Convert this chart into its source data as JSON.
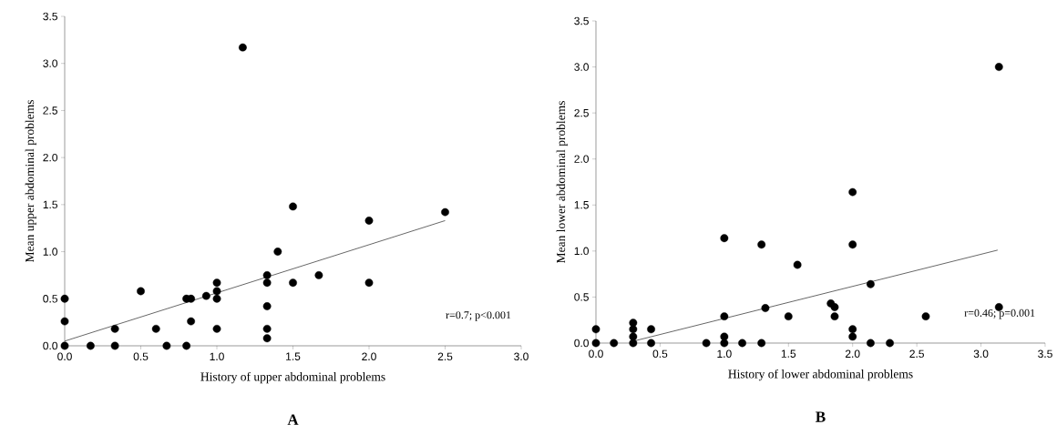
{
  "chart_data": [
    {
      "type": "scatter",
      "title": "A",
      "xlabel": "History of upper abdominal problems",
      "ylabel": "Mean upper abdominal problems",
      "annotations": [
        "r=0.7; p<0.001"
      ],
      "grid": false,
      "xlim": [
        0,
        3
      ],
      "ylim": [
        0,
        3.5
      ],
      "xticks": [
        {
          "value": 0,
          "label": "0.0"
        },
        0.5,
        {
          "value": 1,
          "label": "1.0"
        },
        1.5,
        {
          "value": 2,
          "label": "2.0"
        },
        2.5,
        {
          "value": 3,
          "label": "3.0"
        }
      ],
      "yticks": [
        {
          "value": 0,
          "label": "0.0"
        },
        0.5,
        {
          "value": 1,
          "label": "1.0"
        },
        1.5,
        {
          "value": 2,
          "label": "2.0"
        },
        2.5,
        {
          "value": 3,
          "label": "3.0"
        },
        3.5
      ],
      "series": [
        {
          "marker": "circle",
          "color": "#000000",
          "x": [
            0,
            0,
            0,
            0.17,
            0.33,
            0.33,
            0.5,
            0.6,
            0.67,
            0.8,
            0.8,
            0.83,
            0.83,
            0.93,
            1.0,
            1.0,
            1.0,
            1.0,
            1.17,
            1.33,
            1.33,
            1.33,
            1.33,
            1.33,
            1.4,
            1.5,
            1.5,
            1.67,
            2.0,
            2.0,
            2.5
          ],
          "values": [
            0.5,
            0.26,
            0,
            0,
            0.18,
            0,
            0.58,
            0.18,
            0,
            0.5,
            0,
            0.5,
            0.26,
            0.53,
            0.67,
            0.58,
            0.5,
            0.18,
            3.17,
            0.75,
            0.67,
            0.42,
            0.18,
            0.08,
            1.0,
            1.48,
            0.67,
            0.75,
            1.33,
            0.67,
            1.42
          ]
        },
        {
          "type": "line",
          "marker": "none",
          "color": "#000000",
          "x": [
            0,
            2.5
          ],
          "values": [
            0.05,
            1.33
          ]
        }
      ]
    },
    {
      "type": "scatter",
      "title": "B",
      "xlabel": "History of lower abdominal problems",
      "ylabel": "Mean lower abdominal problems",
      "annotations": [
        "r=0.46; p=0.001"
      ],
      "grid": false,
      "xlim": [
        0,
        3.5
      ],
      "ylim": [
        0,
        3.5
      ],
      "xticks": [
        {
          "value": 0,
          "label": "0.0"
        },
        0.5,
        {
          "value": 1,
          "label": "1.0"
        },
        1.5,
        {
          "value": 2,
          "label": "2.0"
        },
        2.5,
        {
          "value": 3,
          "label": "3.0"
        },
        3.5
      ],
      "yticks": [
        {
          "value": 0,
          "label": "0.0"
        },
        0.5,
        {
          "value": 1,
          "label": "1.0"
        },
        1.5,
        {
          "value": 2,
          "label": "2.0"
        },
        2.5,
        {
          "value": 3,
          "label": "3.0"
        },
        3.5
      ],
      "series": [
        {
          "marker": "circle",
          "color": "#000000",
          "x": [
            0,
            0,
            0.14,
            0.29,
            0.29,
            0.29,
            0.29,
            0.43,
            0.43,
            0.86,
            1.0,
            1.0,
            1.0,
            1.0,
            1.14,
            1.29,
            1.29,
            1.32,
            1.5,
            1.57,
            1.83,
            1.86,
            1.86,
            2.0,
            2.0,
            2.0,
            2.0,
            2.14,
            2.14,
            2.29,
            2.57,
            3.14,
            3.14
          ],
          "values": [
            0.15,
            0,
            0,
            0.22,
            0.15,
            0.07,
            0,
            0.15,
            0,
            0,
            1.14,
            0.29,
            0.07,
            0,
            0,
            1.07,
            0,
            0.38,
            0.29,
            0.85,
            0.43,
            0.39,
            0.29,
            1.64,
            1.07,
            0.15,
            0.07,
            0.64,
            0,
            0,
            0.29,
            3.0,
            0.39
          ]
        },
        {
          "type": "line",
          "marker": "none",
          "color": "#000000",
          "x": [
            0.29,
            3.13
          ],
          "values": [
            0.02,
            1.01
          ]
        }
      ]
    }
  ]
}
